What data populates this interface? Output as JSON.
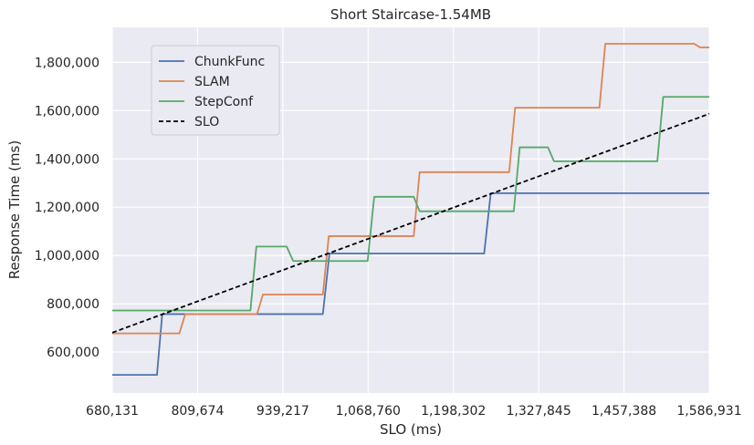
{
  "chart_data": {
    "type": "line",
    "title": "Short Staircase-1.54MB",
    "xlabel": "SLO (ms)",
    "ylabel": "Response Time (ms)",
    "xlim": [
      680131,
      1586931
    ],
    "ylim": [
      430000,
      1945000
    ],
    "x_ticks": [
      680131,
      809674,
      939217,
      1068760,
      1198302,
      1327845,
      1457388,
      1586931
    ],
    "x_tick_labels": [
      "680,131",
      "809,674",
      "939,217",
      "1,068,760",
      "1,198,302",
      "1,327,845",
      "1,457,388",
      "1,586,931"
    ],
    "y_ticks": [
      600000,
      800000,
      1000000,
      1200000,
      1400000,
      1600000,
      1800000
    ],
    "y_tick_labels": [
      "600,000",
      "800,000",
      "1,000,000",
      "1,200,000",
      "1,400,000",
      "1,600,000",
      "1,800,000"
    ],
    "grid": true,
    "legend_position": "top-left",
    "background": "#eaeaf2",
    "series": [
      {
        "name": "ChunkFunc",
        "color": "#4c72b0",
        "style": "solid",
        "points": [
          [
            680131,
            505000
          ],
          [
            748000,
            505000
          ],
          [
            756000,
            757000
          ],
          [
            1000000,
            757000
          ],
          [
            1010000,
            1008000
          ],
          [
            1245000,
            1008000
          ],
          [
            1255000,
            1258000
          ],
          [
            1586931,
            1258000
          ]
        ]
      },
      {
        "name": "SLAM",
        "color": "#dd8452",
        "style": "solid",
        "points": [
          [
            680131,
            677000
          ],
          [
            782000,
            677000
          ],
          [
            791000,
            757000
          ],
          [
            900000,
            757000
          ],
          [
            909000,
            838000
          ],
          [
            1000000,
            838000
          ],
          [
            1009000,
            1080000
          ],
          [
            1138000,
            1080000
          ],
          [
            1147000,
            1345000
          ],
          [
            1283000,
            1345000
          ],
          [
            1292000,
            1612000
          ],
          [
            1420000,
            1612000
          ],
          [
            1429000,
            1877000
          ],
          [
            1564000,
            1877000
          ],
          [
            1573000,
            1862000
          ],
          [
            1586931,
            1862000
          ]
        ]
      },
      {
        "name": "StepConf",
        "color": "#55a868",
        "style": "solid",
        "points": [
          [
            680131,
            772000
          ],
          [
            890000,
            772000
          ],
          [
            899000,
            1037000
          ],
          [
            945000,
            1037000
          ],
          [
            955000,
            977000
          ],
          [
            1068000,
            977000
          ],
          [
            1078000,
            1243000
          ],
          [
            1138000,
            1243000
          ],
          [
            1147000,
            1183000
          ],
          [
            1290000,
            1183000
          ],
          [
            1299000,
            1448000
          ],
          [
            1342000,
            1448000
          ],
          [
            1351000,
            1390000
          ],
          [
            1508000,
            1390000
          ],
          [
            1517000,
            1657000
          ],
          [
            1586931,
            1657000
          ]
        ]
      },
      {
        "name": "SLO",
        "color": "#000000",
        "style": "dashed",
        "points": [
          [
            680131,
            680131
          ],
          [
            1586931,
            1586931
          ]
        ]
      }
    ]
  }
}
